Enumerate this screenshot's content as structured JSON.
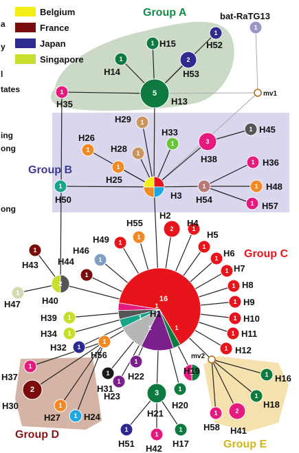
{
  "colors": {
    "belgium": "#f2ee16",
    "france": "#7b0c0c",
    "japan": "#2e2a8f",
    "singapore": "#c8de2c",
    "red": "#e8141b",
    "green": "#0f7a40",
    "teal": "#18a58a",
    "orange": "#f08a24",
    "tan": "#c8965e",
    "purple": "#7a1f8c",
    "magenta": "#e6197f",
    "dkgray": "#555555",
    "ltgray": "#b6b6b6",
    "cream": "#d2dcb2",
    "dkgreen": "#0c6a36",
    "ltblue": "#58a9d8",
    "mauve": "#b87878",
    "cyan": "#1ea8e0",
    "bat": "#9a96c8",
    "black": "#1a1a1a",
    "limegreen": "#6ac23e",
    "steel": "#7f9fc2"
  },
  "legend": [
    {
      "label": "Belgium",
      "color": "belgium"
    },
    {
      "label": "France",
      "color": "france"
    },
    {
      "label": "Japan",
      "color": "japan"
    },
    {
      "label": "Singapore",
      "color": "singapore"
    }
  ],
  "side_fragments": [
    "a",
    "y",
    "l",
    "tates",
    "ing",
    "ong",
    "ong"
  ],
  "groups": [
    {
      "id": "A",
      "label": "Group A",
      "color": "#138c4a"
    },
    {
      "id": "B",
      "label": "Group B",
      "color": "#3f3a94"
    },
    {
      "id": "C",
      "label": "Group C",
      "color": "#e8141b"
    },
    {
      "id": "D",
      "label": "Group D",
      "color": "#8a1414"
    },
    {
      "id": "E",
      "label": "Group E",
      "color": "#d2b31c"
    }
  ],
  "median_vectors": [
    {
      "id": "mv1",
      "label": "mv1"
    },
    {
      "id": "mv2",
      "label": "mv2"
    }
  ],
  "nodes": [
    {
      "id": "bat",
      "label": "bat-RaTG13",
      "count": "1",
      "slices": [
        [
          "bat",
          1
        ]
      ]
    },
    {
      "id": "H15",
      "label": "H15",
      "count": "1",
      "slices": [
        [
          "green",
          1
        ]
      ]
    },
    {
      "id": "H52",
      "label": "H52",
      "count": "1",
      "slices": [
        [
          "japan",
          1
        ]
      ]
    },
    {
      "id": "H53",
      "label": "H53",
      "count": "2",
      "slices": [
        [
          "japan",
          1
        ]
      ]
    },
    {
      "id": "H14",
      "label": "H14",
      "count": "1",
      "slices": [
        [
          "green",
          1
        ]
      ]
    },
    {
      "id": "H13",
      "label": "H13",
      "count": "5",
      "slices": [
        [
          "green",
          1
        ]
      ]
    },
    {
      "id": "H35",
      "label": "H35",
      "count": "1",
      "slices": [
        [
          "magenta",
          1
        ]
      ]
    },
    {
      "id": "H29",
      "label": "H29",
      "count": "1",
      "slices": [
        [
          "tan",
          1
        ]
      ]
    },
    {
      "id": "H33",
      "label": "H33",
      "count": "1",
      "slices": [
        [
          "limegreen",
          1
        ]
      ]
    },
    {
      "id": "H45",
      "label": "H45",
      "count": "1",
      "slices": [
        [
          "dkgray",
          1
        ]
      ]
    },
    {
      "id": "H26",
      "label": "H26",
      "count": "1",
      "slices": [
        [
          "orange",
          1
        ]
      ]
    },
    {
      "id": "H28",
      "label": "H28",
      "count": "1",
      "slices": [
        [
          "tan",
          1
        ]
      ]
    },
    {
      "id": "H38",
      "label": "H38",
      "count": "3",
      "slices": [
        [
          "magenta",
          1
        ]
      ]
    },
    {
      "id": "H25",
      "label": "H25",
      "count": "1",
      "slices": [
        [
          "orange",
          1
        ]
      ]
    },
    {
      "id": "H3",
      "label": "H3",
      "count": "",
      "slices": [
        [
          "red",
          1
        ],
        [
          "cyan",
          1
        ],
        [
          "orange",
          1
        ],
        [
          "belgium",
          1
        ]
      ]
    },
    {
      "id": "H36",
      "label": "H36",
      "count": "1",
      "slices": [
        [
          "magenta",
          1
        ]
      ]
    },
    {
      "id": "H50",
      "label": "H50",
      "count": "1",
      "slices": [
        [
          "teal",
          1
        ]
      ]
    },
    {
      "id": "H54",
      "label": "H54",
      "count": "1",
      "slices": [
        [
          "mauve",
          1
        ]
      ]
    },
    {
      "id": "H48",
      "label": "H48",
      "count": "1",
      "slices": [
        [
          "orange",
          1
        ]
      ]
    },
    {
      "id": "H57",
      "label": "H57",
      "count": "1",
      "slices": [
        [
          "magenta",
          1
        ]
      ]
    },
    {
      "id": "H2",
      "label": "H2",
      "count": "2",
      "slices": [
        [
          "red",
          1
        ]
      ]
    },
    {
      "id": "H4",
      "label": "H4",
      "count": "1",
      "slices": [
        [
          "red",
          1
        ]
      ]
    },
    {
      "id": "H55",
      "label": "H55",
      "count": "1",
      "slices": [
        [
          "orange",
          1
        ]
      ]
    },
    {
      "id": "H49",
      "label": "H49",
      "count": "1",
      "slices": [
        [
          "red",
          1
        ]
      ]
    },
    {
      "id": "H5",
      "label": "H5",
      "count": "1",
      "slices": [
        [
          "red",
          1
        ]
      ]
    },
    {
      "id": "H6",
      "label": "H6",
      "count": "1",
      "slices": [
        [
          "red",
          1
        ]
      ]
    },
    {
      "id": "H46",
      "label": "H46",
      "count": "1",
      "slices": [
        [
          "steel",
          1
        ]
      ]
    },
    {
      "id": "H7",
      "label": "H7",
      "count": "1",
      "slices": [
        [
          "red",
          1
        ]
      ]
    },
    {
      "id": "H44",
      "label": "H44",
      "count": "1",
      "slices": [
        [
          "france",
          1
        ]
      ]
    },
    {
      "id": "H43",
      "label": "H43",
      "count": "1",
      "slices": [
        [
          "france",
          1
        ]
      ]
    },
    {
      "id": "H8",
      "label": "H8",
      "count": "1",
      "slices": [
        [
          "red",
          1
        ]
      ]
    },
    {
      "id": "H9",
      "label": "H9",
      "count": "1",
      "slices": [
        [
          "red",
          1
        ]
      ]
    },
    {
      "id": "H10",
      "label": "H10",
      "count": "1",
      "slices": [
        [
          "red",
          1
        ]
      ]
    },
    {
      "id": "H11",
      "label": "H11",
      "count": "1",
      "slices": [
        [
          "red",
          1
        ]
      ]
    },
    {
      "id": "H12",
      "label": "H12",
      "count": "1",
      "slices": [
        [
          "red",
          1
        ]
      ]
    },
    {
      "id": "H47",
      "label": "H47",
      "count": "1",
      "slices": [
        [
          "cream",
          1
        ]
      ]
    },
    {
      "id": "H40",
      "label": "H40",
      "count": "2",
      "slices": [
        [
          "dkgray",
          1
        ],
        [
          "singapore",
          1
        ]
      ]
    },
    {
      "id": "H39",
      "label": "H39",
      "count": "1",
      "slices": [
        [
          "singapore",
          1
        ]
      ]
    },
    {
      "id": "H34",
      "label": "H34",
      "count": "1",
      "slices": [
        [
          "singapore",
          1
        ]
      ]
    },
    {
      "id": "H1",
      "label": "H1",
      "count": "16",
      "slices": [
        [
          "red",
          13
        ],
        [
          "green",
          0.6
        ],
        [
          "purple",
          2.6
        ],
        [
          "ltgray",
          2.1
        ],
        [
          "teal",
          0.7
        ],
        [
          "dkgray",
          0.7
        ],
        [
          "magenta",
          0.6
        ]
      ]
    },
    {
      "id": "H32",
      "label": "H32",
      "count": "1",
      "slices": [
        [
          "japan",
          1
        ]
      ]
    },
    {
      "id": "H56",
      "label": "H56",
      "count": "1",
      "slices": [
        [
          "orange",
          1
        ]
      ]
    },
    {
      "id": "H37",
      "label": "H37",
      "count": "1",
      "slices": [
        [
          "magenta",
          1
        ]
      ]
    },
    {
      "id": "H31",
      "label": "H31",
      "count": "1",
      "slices": [
        [
          "black",
          1
        ]
      ]
    },
    {
      "id": "H22",
      "label": "H22",
      "count": "1",
      "slices": [
        [
          "purple",
          1
        ]
      ]
    },
    {
      "id": "H19",
      "label": "H19",
      "count": "2",
      "slices": [
        [
          "green",
          1
        ],
        [
          "magenta",
          1
        ]
      ]
    },
    {
      "id": "H16",
      "label": "H16",
      "count": "1",
      "slices": [
        [
          "green",
          1
        ]
      ]
    },
    {
      "id": "H30",
      "label": "H30",
      "count": "2",
      "slices": [
        [
          "france",
          1
        ]
      ]
    },
    {
      "id": "H23",
      "label": "H23",
      "count": "1",
      "slices": [
        [
          "purple",
          1
        ]
      ]
    },
    {
      "id": "H21",
      "label": "H21",
      "count": "3",
      "slices": [
        [
          "green",
          1
        ]
      ]
    },
    {
      "id": "H20",
      "label": "H20",
      "count": "1",
      "slices": [
        [
          "green",
          1
        ]
      ]
    },
    {
      "id": "H18",
      "label": "H18",
      "count": "1",
      "slices": [
        [
          "green",
          1
        ]
      ]
    },
    {
      "id": "H27",
      "label": "H27",
      "count": "1",
      "slices": [
        [
          "orange",
          1
        ]
      ]
    },
    {
      "id": "H24",
      "label": "H24",
      "count": "1",
      "slices": [
        [
          "cyan",
          1
        ]
      ]
    },
    {
      "id": "H58",
      "label": "H58",
      "count": "1",
      "slices": [
        [
          "magenta",
          1
        ]
      ]
    },
    {
      "id": "H41",
      "label": "H41",
      "count": "2",
      "slices": [
        [
          "magenta",
          1
        ]
      ]
    },
    {
      "id": "H51",
      "label": "H51",
      "count": "1",
      "slices": [
        [
          "japan",
          1
        ]
      ]
    },
    {
      "id": "H42",
      "label": "H42",
      "count": "1",
      "slices": [
        [
          "magenta",
          1
        ]
      ]
    },
    {
      "id": "H17",
      "label": "H17",
      "count": "1",
      "slices": [
        [
          "green",
          1
        ]
      ]
    }
  ],
  "edges": [
    [
      "bat",
      "mv1"
    ],
    [
      "mv1",
      "H13"
    ],
    [
      "mv1",
      "H3"
    ],
    [
      "H13",
      "H15"
    ],
    [
      "H13",
      "H52"
    ],
    [
      "H13",
      "H53"
    ],
    [
      "H13",
      "H14"
    ],
    [
      "H13",
      "H35"
    ],
    [
      "H13",
      "H3"
    ],
    [
      "H3",
      "H29"
    ],
    [
      "H3",
      "H33"
    ],
    [
      "H3",
      "H38"
    ],
    [
      "H3",
      "H26"
    ],
    [
      "H3",
      "H28"
    ],
    [
      "H3",
      "H25"
    ],
    [
      "H3",
      "H50"
    ],
    [
      "H3",
      "H54"
    ],
    [
      "H3",
      "H1"
    ],
    [
      "H38",
      "H45"
    ],
    [
      "H54",
      "H36"
    ],
    [
      "H54",
      "H48"
    ],
    [
      "H54",
      "H57"
    ],
    [
      "H35",
      "H40"
    ],
    [
      "H40",
      "H43"
    ],
    [
      "H40",
      "H47"
    ],
    [
      "H40",
      "H1"
    ],
    [
      "H1",
      "H2"
    ],
    [
      "H1",
      "H4"
    ],
    [
      "H1",
      "H55"
    ],
    [
      "H1",
      "H49"
    ],
    [
      "H1",
      "H5"
    ],
    [
      "H1",
      "H6"
    ],
    [
      "H1",
      "H46"
    ],
    [
      "H1",
      "H7"
    ],
    [
      "H1",
      "H44"
    ],
    [
      "H1",
      "H8"
    ],
    [
      "H1",
      "H9"
    ],
    [
      "H1",
      "H10"
    ],
    [
      "H1",
      "H11"
    ],
    [
      "H1",
      "H12"
    ],
    [
      "H1",
      "H39"
    ],
    [
      "H1",
      "H34"
    ],
    [
      "H1",
      "H32"
    ],
    [
      "H1",
      "H56"
    ],
    [
      "H1",
      "H31"
    ],
    [
      "H1",
      "H22"
    ],
    [
      "H1",
      "H19"
    ],
    [
      "H1",
      "H23"
    ],
    [
      "H1",
      "H21"
    ],
    [
      "H1",
      "H20"
    ],
    [
      "H1",
      "mv2"
    ],
    [
      "H56",
      "H37"
    ],
    [
      "H56",
      "H30"
    ],
    [
      "H56",
      "H27"
    ],
    [
      "H56",
      "H24"
    ],
    [
      "H21",
      "H51"
    ],
    [
      "H21",
      "H42"
    ],
    [
      "H21",
      "H17"
    ],
    [
      "mv2",
      "H16"
    ],
    [
      "mv2",
      "H18"
    ],
    [
      "mv2",
      "H58"
    ],
    [
      "mv2",
      "H41"
    ]
  ]
}
